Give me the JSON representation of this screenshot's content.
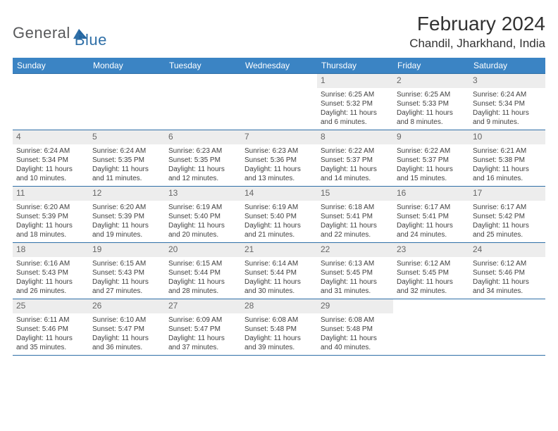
{
  "brand": {
    "part1": "General",
    "part2": "Blue"
  },
  "header": {
    "month_title": "February 2024",
    "location": "Chandil, Jharkhand, India"
  },
  "styles": {
    "header_bg": "#3b84c4",
    "header_text": "#ffffff",
    "daynum_bg": "#ededed",
    "border_color": "#2f6fa7",
    "body_text": "#3f3f3f",
    "title_fontsize": 28,
    "location_fontsize": 17,
    "dayhdr_fontsize": 12,
    "cell_fontsize": 10
  },
  "day_headers": [
    "Sunday",
    "Monday",
    "Tuesday",
    "Wednesday",
    "Thursday",
    "Friday",
    "Saturday"
  ],
  "weeks": [
    [
      null,
      null,
      null,
      null,
      {
        "n": "1",
        "sr": "6:25 AM",
        "ss": "5:32 PM",
        "dl": "11 hours and 6 minutes."
      },
      {
        "n": "2",
        "sr": "6:25 AM",
        "ss": "5:33 PM",
        "dl": "11 hours and 8 minutes."
      },
      {
        "n": "3",
        "sr": "6:24 AM",
        "ss": "5:34 PM",
        "dl": "11 hours and 9 minutes."
      }
    ],
    [
      {
        "n": "4",
        "sr": "6:24 AM",
        "ss": "5:34 PM",
        "dl": "11 hours and 10 minutes."
      },
      {
        "n": "5",
        "sr": "6:24 AM",
        "ss": "5:35 PM",
        "dl": "11 hours and 11 minutes."
      },
      {
        "n": "6",
        "sr": "6:23 AM",
        "ss": "5:35 PM",
        "dl": "11 hours and 12 minutes."
      },
      {
        "n": "7",
        "sr": "6:23 AM",
        "ss": "5:36 PM",
        "dl": "11 hours and 13 minutes."
      },
      {
        "n": "8",
        "sr": "6:22 AM",
        "ss": "5:37 PM",
        "dl": "11 hours and 14 minutes."
      },
      {
        "n": "9",
        "sr": "6:22 AM",
        "ss": "5:37 PM",
        "dl": "11 hours and 15 minutes."
      },
      {
        "n": "10",
        "sr": "6:21 AM",
        "ss": "5:38 PM",
        "dl": "11 hours and 16 minutes."
      }
    ],
    [
      {
        "n": "11",
        "sr": "6:20 AM",
        "ss": "5:39 PM",
        "dl": "11 hours and 18 minutes."
      },
      {
        "n": "12",
        "sr": "6:20 AM",
        "ss": "5:39 PM",
        "dl": "11 hours and 19 minutes."
      },
      {
        "n": "13",
        "sr": "6:19 AM",
        "ss": "5:40 PM",
        "dl": "11 hours and 20 minutes."
      },
      {
        "n": "14",
        "sr": "6:19 AM",
        "ss": "5:40 PM",
        "dl": "11 hours and 21 minutes."
      },
      {
        "n": "15",
        "sr": "6:18 AM",
        "ss": "5:41 PM",
        "dl": "11 hours and 22 minutes."
      },
      {
        "n": "16",
        "sr": "6:17 AM",
        "ss": "5:41 PM",
        "dl": "11 hours and 24 minutes."
      },
      {
        "n": "17",
        "sr": "6:17 AM",
        "ss": "5:42 PM",
        "dl": "11 hours and 25 minutes."
      }
    ],
    [
      {
        "n": "18",
        "sr": "6:16 AM",
        "ss": "5:43 PM",
        "dl": "11 hours and 26 minutes."
      },
      {
        "n": "19",
        "sr": "6:15 AM",
        "ss": "5:43 PM",
        "dl": "11 hours and 27 minutes."
      },
      {
        "n": "20",
        "sr": "6:15 AM",
        "ss": "5:44 PM",
        "dl": "11 hours and 28 minutes."
      },
      {
        "n": "21",
        "sr": "6:14 AM",
        "ss": "5:44 PM",
        "dl": "11 hours and 30 minutes."
      },
      {
        "n": "22",
        "sr": "6:13 AM",
        "ss": "5:45 PM",
        "dl": "11 hours and 31 minutes."
      },
      {
        "n": "23",
        "sr": "6:12 AM",
        "ss": "5:45 PM",
        "dl": "11 hours and 32 minutes."
      },
      {
        "n": "24",
        "sr": "6:12 AM",
        "ss": "5:46 PM",
        "dl": "11 hours and 34 minutes."
      }
    ],
    [
      {
        "n": "25",
        "sr": "6:11 AM",
        "ss": "5:46 PM",
        "dl": "11 hours and 35 minutes."
      },
      {
        "n": "26",
        "sr": "6:10 AM",
        "ss": "5:47 PM",
        "dl": "11 hours and 36 minutes."
      },
      {
        "n": "27",
        "sr": "6:09 AM",
        "ss": "5:47 PM",
        "dl": "11 hours and 37 minutes."
      },
      {
        "n": "28",
        "sr": "6:08 AM",
        "ss": "5:48 PM",
        "dl": "11 hours and 39 minutes."
      },
      {
        "n": "29",
        "sr": "6:08 AM",
        "ss": "5:48 PM",
        "dl": "11 hours and 40 minutes."
      },
      null,
      null
    ]
  ],
  "labels": {
    "sunrise": "Sunrise: ",
    "sunset": "Sunset: ",
    "daylight": "Daylight: "
  }
}
